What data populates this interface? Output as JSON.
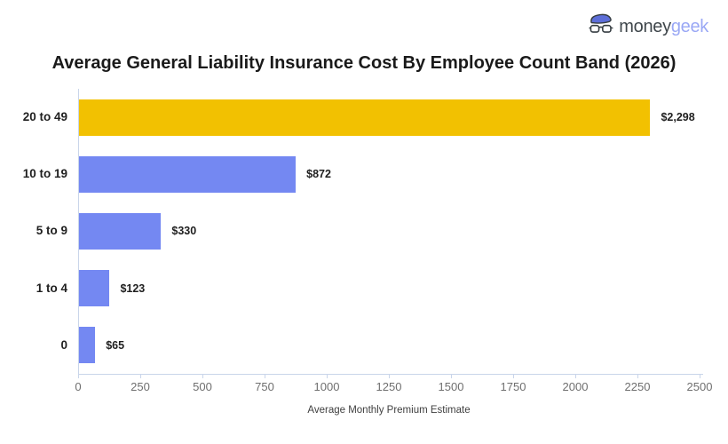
{
  "logo": {
    "brand_prefix": "money",
    "brand_suffix": "geek",
    "icon": "moneygeek-geek-face-icon",
    "prefix_color": "#3F464B",
    "suffix_color": "#9AA8F5"
  },
  "title": "Average General Liability Insurance Cost By Employee Count Band (2026)",
  "chart_data": {
    "type": "bar",
    "orientation": "horizontal",
    "title": "Average General Liability Insurance Cost By Employee Count Band (2026)",
    "categories": [
      "20 to 49",
      "10 to 19",
      "5 to 9",
      "1 to 4",
      "0"
    ],
    "values": [
      2298,
      872,
      330,
      123,
      65
    ],
    "value_labels": [
      "$2,298",
      "$872",
      "$330",
      "$123",
      "$65"
    ],
    "bar_colors": [
      "#F2C101",
      "#7488F2",
      "#7488F2",
      "#7488F2",
      "#7488F2"
    ],
    "highlight_color": "#F2C101",
    "base_bar_color": "#7488F2",
    "xlabel": "Average Monthly Premium Estimate",
    "ylabel": "",
    "xlim": [
      0,
      2500
    ],
    "x_ticks": [
      0,
      250,
      500,
      750,
      1000,
      1250,
      1500,
      1750,
      2000,
      2250,
      2500
    ],
    "grid": false,
    "legend": "none",
    "axis_color": "#C9D5EA",
    "tick_label_color": "#6F6F6F",
    "label_color": "#1F1F1F"
  }
}
